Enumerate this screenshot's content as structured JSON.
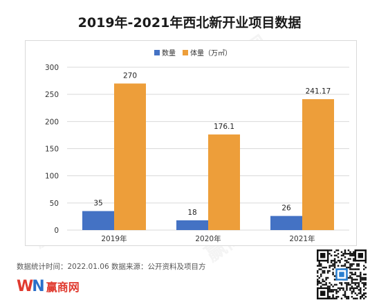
{
  "title": "2019年-2021年西北新开业项目数据",
  "footer": {
    "text": "数据统计时间：2022.01.06  数据来源：公开资料及项目方"
  },
  "logo": {
    "mark_w": "W",
    "mark_n": "N",
    "name": "赢商网"
  },
  "watermark": "赢商网",
  "colors": {
    "count": "#4472C4",
    "volume": "#ED9E3A",
    "grid": "#d9d9d9"
  },
  "chart_data": {
    "type": "bar",
    "title": "2019年-2021年西北新开业项目数据",
    "categories": [
      "2019年",
      "2020年",
      "2021年"
    ],
    "series": [
      {
        "name": "数量",
        "values": [
          35,
          18,
          26
        ],
        "labels": [
          "35",
          "18",
          "26"
        ],
        "color": "#4472C4"
      },
      {
        "name": "体量（万㎡）",
        "values": [
          270,
          176.1,
          241.17
        ],
        "labels": [
          "270",
          "176.1",
          "241.17"
        ],
        "color": "#ED9E3A"
      }
    ],
    "ylim": [
      0,
      300
    ],
    "yticks": [
      0,
      50,
      100,
      150,
      200,
      250,
      300
    ],
    "grid": true,
    "legend": "top-right",
    "xlabel": "",
    "ylabel": ""
  }
}
